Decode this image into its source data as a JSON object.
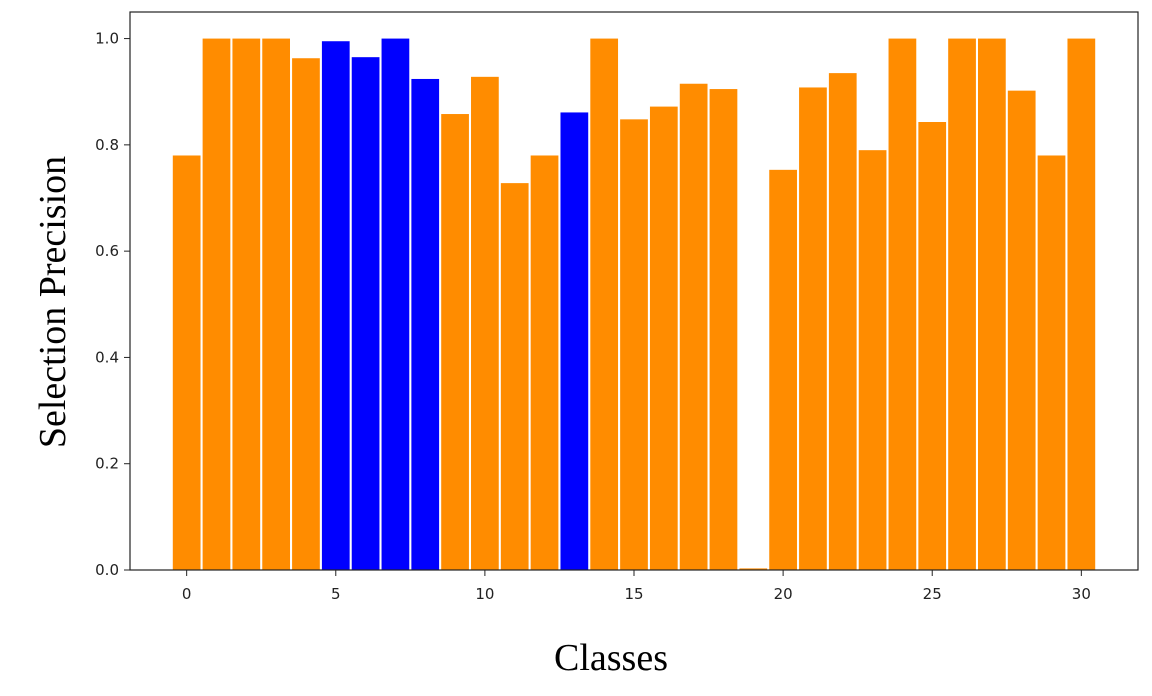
{
  "chart_data": {
    "type": "bar",
    "title": "",
    "xlabel": "Classes",
    "ylabel": "Selection Precision",
    "x": [
      0,
      1,
      2,
      3,
      4,
      5,
      6,
      7,
      8,
      9,
      10,
      11,
      12,
      13,
      14,
      15,
      16,
      17,
      18,
      19,
      20,
      21,
      22,
      23,
      24,
      25,
      26,
      27,
      28,
      29,
      30
    ],
    "values": [
      0.78,
      1.0,
      1.0,
      1.0,
      0.963,
      0.995,
      0.965,
      1.0,
      0.924,
      0.858,
      0.928,
      0.728,
      0.78,
      0.861,
      1.0,
      0.848,
      0.872,
      0.915,
      0.905,
      0.003,
      0.753,
      0.908,
      0.935,
      0.79,
      1.0,
      0.843,
      1.0,
      1.0,
      0.902,
      0.78,
      1.0
    ],
    "highlighted_classes": [
      5,
      6,
      7,
      8,
      13
    ],
    "colors": {
      "default": "#FF8C00",
      "highlight": "#0000FF"
    },
    "xlim": [
      -1.9,
      31.9
    ],
    "ylim": [
      0,
      1.05
    ],
    "xticks": [
      0,
      5,
      10,
      15,
      20,
      25,
      30
    ],
    "yticks": [
      0.0,
      0.2,
      0.4,
      0.6,
      0.8,
      1.0
    ],
    "ytick_labels": [
      "0.0",
      "0.2",
      "0.4",
      "0.6",
      "0.8",
      "1.0"
    ],
    "grid": false,
    "legend": "none"
  }
}
